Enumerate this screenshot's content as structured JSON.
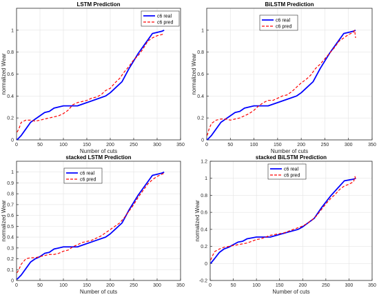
{
  "chart_data": [
    {
      "type": "line",
      "title": "LSTM Prediction",
      "xlabel": "Number of cuts",
      "ylabel": "normalized Wear",
      "xlim": [
        0,
        350
      ],
      "ylim": [
        0,
        1.2
      ],
      "xticks": [
        0,
        50,
        100,
        150,
        200,
        250,
        300,
        350
      ],
      "yticks": [
        0,
        0.2,
        0.4,
        0.6,
        0.8,
        1
      ],
      "grid": true,
      "legend_position": "top-right",
      "series": [
        {
          "name": "c6 real",
          "color": "#0000ff",
          "style": "solid",
          "points": [
            [
              1,
              0
            ],
            [
              10,
              0.04
            ],
            [
              20,
              0.1
            ],
            [
              30,
              0.16
            ],
            [
              40,
              0.19
            ],
            [
              50,
              0.22
            ],
            [
              60,
              0.25
            ],
            [
              70,
              0.26
            ],
            [
              80,
              0.29
            ],
            [
              90,
              0.3
            ],
            [
              100,
              0.31
            ],
            [
              110,
              0.31
            ],
            [
              120,
              0.31
            ],
            [
              130,
              0.31
            ],
            [
              150,
              0.34
            ],
            [
              170,
              0.37
            ],
            [
              190,
              0.4
            ],
            [
              200,
              0.43
            ],
            [
              210,
              0.47
            ],
            [
              225,
              0.53
            ],
            [
              240,
              0.65
            ],
            [
              260,
              0.79
            ],
            [
              275,
              0.88
            ],
            [
              290,
              0.97
            ],
            [
              300,
              0.98
            ],
            [
              310,
              0.99
            ],
            [
              315,
              1.0
            ]
          ]
        },
        {
          "name": "c6 pred",
          "color": "#ff0000",
          "style": "dashed",
          "points": [
            [
              1,
              0.07
            ],
            [
              5,
              0.1
            ],
            [
              10,
              0.16
            ],
            [
              20,
              0.18
            ],
            [
              30,
              0.18
            ],
            [
              40,
              0.17
            ],
            [
              50,
              0.18
            ],
            [
              60,
              0.19
            ],
            [
              70,
              0.2
            ],
            [
              80,
              0.21
            ],
            [
              90,
              0.22
            ],
            [
              100,
              0.24
            ],
            [
              110,
              0.27
            ],
            [
              120,
              0.32
            ],
            [
              130,
              0.34
            ],
            [
              140,
              0.35
            ],
            [
              150,
              0.36
            ],
            [
              160,
              0.38
            ],
            [
              170,
              0.39
            ],
            [
              180,
              0.41
            ],
            [
              190,
              0.45
            ],
            [
              200,
              0.47
            ],
            [
              210,
              0.52
            ],
            [
              220,
              0.56
            ],
            [
              230,
              0.62
            ],
            [
              240,
              0.67
            ],
            [
              250,
              0.73
            ],
            [
              260,
              0.77
            ],
            [
              270,
              0.83
            ],
            [
              280,
              0.9
            ],
            [
              290,
              0.93
            ],
            [
              300,
              0.95
            ],
            [
              310,
              0.96
            ],
            [
              315,
              0.97
            ]
          ]
        }
      ]
    },
    {
      "type": "line",
      "title": "BiLSTM Prediction",
      "xlabel": "Number of cuts",
      "ylabel": "normalized Wear",
      "xlim": [
        0,
        350
      ],
      "ylim": [
        0,
        1.2
      ],
      "xticks": [
        0,
        50,
        100,
        150,
        200,
        250,
        300,
        350
      ],
      "yticks": [
        0,
        0.2,
        0.4,
        0.6,
        0.8,
        1
      ],
      "grid": true,
      "legend_position": "top-right",
      "series": [
        {
          "name": "c6 real",
          "color": "#0000ff",
          "style": "solid",
          "points": [
            [
              1,
              0
            ],
            [
              10,
              0.04
            ],
            [
              20,
              0.1
            ],
            [
              30,
              0.16
            ],
            [
              40,
              0.19
            ],
            [
              50,
              0.22
            ],
            [
              60,
              0.25
            ],
            [
              70,
              0.26
            ],
            [
              80,
              0.29
            ],
            [
              90,
              0.3
            ],
            [
              100,
              0.31
            ],
            [
              110,
              0.31
            ],
            [
              120,
              0.31
            ],
            [
              130,
              0.31
            ],
            [
              150,
              0.34
            ],
            [
              170,
              0.37
            ],
            [
              190,
              0.4
            ],
            [
              200,
              0.43
            ],
            [
              210,
              0.47
            ],
            [
              225,
              0.53
            ],
            [
              240,
              0.65
            ],
            [
              260,
              0.79
            ],
            [
              275,
              0.88
            ],
            [
              290,
              0.97
            ],
            [
              300,
              0.98
            ],
            [
              310,
              0.99
            ],
            [
              315,
              1.0
            ]
          ]
        },
        {
          "name": "c6 pred",
          "color": "#ff0000",
          "style": "dashed",
          "points": [
            [
              1,
              0.04
            ],
            [
              5,
              0.1
            ],
            [
              10,
              0.15
            ],
            [
              20,
              0.18
            ],
            [
              30,
              0.19
            ],
            [
              40,
              0.19
            ],
            [
              50,
              0.18
            ],
            [
              60,
              0.19
            ],
            [
              70,
              0.2
            ],
            [
              80,
              0.22
            ],
            [
              90,
              0.24
            ],
            [
              100,
              0.27
            ],
            [
              110,
              0.31
            ],
            [
              120,
              0.34
            ],
            [
              130,
              0.36
            ],
            [
              140,
              0.36
            ],
            [
              150,
              0.38
            ],
            [
              160,
              0.4
            ],
            [
              170,
              0.41
            ],
            [
              180,
              0.44
            ],
            [
              190,
              0.48
            ],
            [
              200,
              0.52
            ],
            [
              210,
              0.55
            ],
            [
              220,
              0.59
            ],
            [
              230,
              0.65
            ],
            [
              240,
              0.69
            ],
            [
              250,
              0.74
            ],
            [
              260,
              0.79
            ],
            [
              270,
              0.84
            ],
            [
              280,
              0.9
            ],
            [
              290,
              0.93
            ],
            [
              300,
              0.96
            ],
            [
              310,
              0.98
            ],
            [
              313,
              1.0
            ],
            [
              315,
              0.93
            ]
          ]
        }
      ]
    },
    {
      "type": "line",
      "title": "stacked LSTM Prediction",
      "xlabel": "Number of cuts",
      "ylabel": "normalized Wear",
      "xlim": [
        0,
        350
      ],
      "ylim": [
        0,
        1.1
      ],
      "xticks": [
        0,
        50,
        100,
        150,
        200,
        250,
        300,
        350
      ],
      "yticks": [
        0,
        0.1,
        0.2,
        0.3,
        0.4,
        0.5,
        0.6,
        0.7,
        0.8,
        0.9,
        1
      ],
      "grid": true,
      "legend_position": "top-center",
      "series": [
        {
          "name": "c6 real",
          "color": "#0000ff",
          "style": "solid",
          "points": [
            [
              1,
              0.01
            ],
            [
              10,
              0.05
            ],
            [
              20,
              0.11
            ],
            [
              30,
              0.17
            ],
            [
              40,
              0.2
            ],
            [
              50,
              0.22
            ],
            [
              60,
              0.25
            ],
            [
              70,
              0.26
            ],
            [
              80,
              0.29
            ],
            [
              90,
              0.3
            ],
            [
              100,
              0.31
            ],
            [
              110,
              0.31
            ],
            [
              120,
              0.31
            ],
            [
              130,
              0.31
            ],
            [
              150,
              0.34
            ],
            [
              170,
              0.37
            ],
            [
              190,
              0.4
            ],
            [
              200,
              0.43
            ],
            [
              210,
              0.47
            ],
            [
              225,
              0.53
            ],
            [
              240,
              0.65
            ],
            [
              260,
              0.79
            ],
            [
              275,
              0.88
            ],
            [
              290,
              0.97
            ],
            [
              300,
              0.98
            ],
            [
              310,
              0.99
            ],
            [
              315,
              1.0
            ]
          ]
        },
        {
          "name": "c6 pred",
          "color": "#ff0000",
          "style": "dashed",
          "points": [
            [
              1,
              0.07
            ],
            [
              5,
              0.1
            ],
            [
              10,
              0.15
            ],
            [
              20,
              0.2
            ],
            [
              30,
              0.21
            ],
            [
              40,
              0.21
            ],
            [
              50,
              0.22
            ],
            [
              60,
              0.23
            ],
            [
              70,
              0.24
            ],
            [
              80,
              0.24
            ],
            [
              90,
              0.25
            ],
            [
              100,
              0.27
            ],
            [
              110,
              0.28
            ],
            [
              120,
              0.31
            ],
            [
              130,
              0.33
            ],
            [
              140,
              0.35
            ],
            [
              150,
              0.36
            ],
            [
              160,
              0.37
            ],
            [
              170,
              0.39
            ],
            [
              180,
              0.41
            ],
            [
              190,
              0.44
            ],
            [
              200,
              0.47
            ],
            [
              210,
              0.5
            ],
            [
              220,
              0.53
            ],
            [
              230,
              0.58
            ],
            [
              240,
              0.64
            ],
            [
              250,
              0.7
            ],
            [
              260,
              0.77
            ],
            [
              270,
              0.83
            ],
            [
              280,
              0.89
            ],
            [
              290,
              0.93
            ],
            [
              300,
              0.96
            ],
            [
              310,
              0.98
            ],
            [
              315,
              0.99
            ]
          ]
        }
      ]
    },
    {
      "type": "line",
      "title": "stacked BiLSTM Prediction",
      "xlabel": "Number of cuts",
      "ylabel": "normalized Wear",
      "xlim": [
        0,
        350
      ],
      "ylim": [
        -0.2,
        1.2
      ],
      "xticks": [
        0,
        50,
        100,
        150,
        200,
        250,
        300,
        350
      ],
      "yticks": [
        -0.2,
        0,
        0.2,
        0.4,
        0.6,
        0.8,
        1,
        1.2
      ],
      "grid": true,
      "legend_position": "top-center",
      "series": [
        {
          "name": "c6 real",
          "color": "#0000ff",
          "style": "solid",
          "points": [
            [
              1,
              0
            ],
            [
              10,
              0.06
            ],
            [
              20,
              0.13
            ],
            [
              30,
              0.17
            ],
            [
              40,
              0.19
            ],
            [
              50,
              0.22
            ],
            [
              60,
              0.25
            ],
            [
              70,
              0.26
            ],
            [
              80,
              0.29
            ],
            [
              90,
              0.3
            ],
            [
              100,
              0.31
            ],
            [
              110,
              0.31
            ],
            [
              120,
              0.31
            ],
            [
              130,
              0.31
            ],
            [
              150,
              0.34
            ],
            [
              170,
              0.37
            ],
            [
              190,
              0.4
            ],
            [
              200,
              0.43
            ],
            [
              210,
              0.47
            ],
            [
              225,
              0.53
            ],
            [
              240,
              0.65
            ],
            [
              260,
              0.79
            ],
            [
              275,
              0.88
            ],
            [
              290,
              0.97
            ],
            [
              300,
              0.98
            ],
            [
              310,
              0.99
            ],
            [
              315,
              1.0
            ]
          ]
        },
        {
          "name": "c6 pred",
          "color": "#ff0000",
          "style": "dashed",
          "points": [
            [
              1,
              0.04
            ],
            [
              5,
              0.09
            ],
            [
              10,
              0.14
            ],
            [
              20,
              0.17
            ],
            [
              30,
              0.19
            ],
            [
              40,
              0.2
            ],
            [
              50,
              0.21
            ],
            [
              60,
              0.22
            ],
            [
              70,
              0.23
            ],
            [
              80,
              0.24
            ],
            [
              90,
              0.26
            ],
            [
              100,
              0.28
            ],
            [
              110,
              0.29
            ],
            [
              120,
              0.31
            ],
            [
              130,
              0.33
            ],
            [
              140,
              0.34
            ],
            [
              150,
              0.35
            ],
            [
              160,
              0.36
            ],
            [
              170,
              0.38
            ],
            [
              180,
              0.4
            ],
            [
              190,
              0.42
            ],
            [
              200,
              0.44
            ],
            [
              210,
              0.47
            ],
            [
              220,
              0.51
            ],
            [
              230,
              0.56
            ],
            [
              240,
              0.63
            ],
            [
              250,
              0.7
            ],
            [
              260,
              0.76
            ],
            [
              270,
              0.81
            ],
            [
              280,
              0.87
            ],
            [
              290,
              0.91
            ],
            [
              300,
              0.93
            ],
            [
              310,
              0.96
            ],
            [
              313,
              1.02
            ],
            [
              315,
              0.98
            ]
          ]
        }
      ]
    }
  ]
}
